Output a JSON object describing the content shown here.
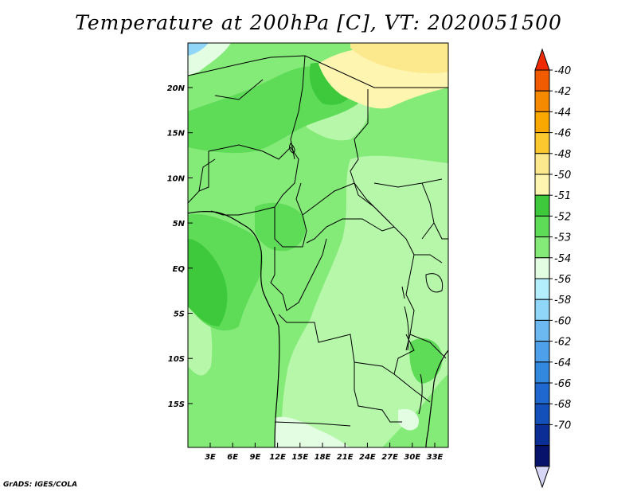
{
  "title": "Temperature at 200hPa [C], VT: 2020051500",
  "credit": "GrADS: IGES/COLA",
  "map": {
    "lat_ticks": [
      "20N",
      "15N",
      "10N",
      "5N",
      "EQ",
      "5S",
      "10S",
      "15S"
    ],
    "lon_ticks": [
      "3E",
      "6E",
      "9E",
      "12E",
      "15E",
      "18E",
      "21E",
      "24E",
      "27E",
      "30E",
      "33E"
    ]
  },
  "legend": {
    "colors": [
      "#ee2a00",
      "#f05a00",
      "#f58a00",
      "#f8a800",
      "#fbc830",
      "#fde98d",
      "#fdf5b0",
      "#3ec93c",
      "#5edb57",
      "#84ea78",
      "#e2fde2",
      "#b3eefd",
      "#8fd6f8",
      "#6cb9f2",
      "#4fa0ea",
      "#3288de",
      "#1e68d0",
      "#1450ba",
      "#0a2e96",
      "#07126a",
      "#d6d6f6"
    ],
    "labels": [
      "-40",
      "-42",
      "-44",
      "-46",
      "-48",
      "-50",
      "-51",
      "-52",
      "-53",
      "-54",
      "-56",
      "-58",
      "-60",
      "-62",
      "-64",
      "-66",
      "-68",
      "-70"
    ]
  }
}
